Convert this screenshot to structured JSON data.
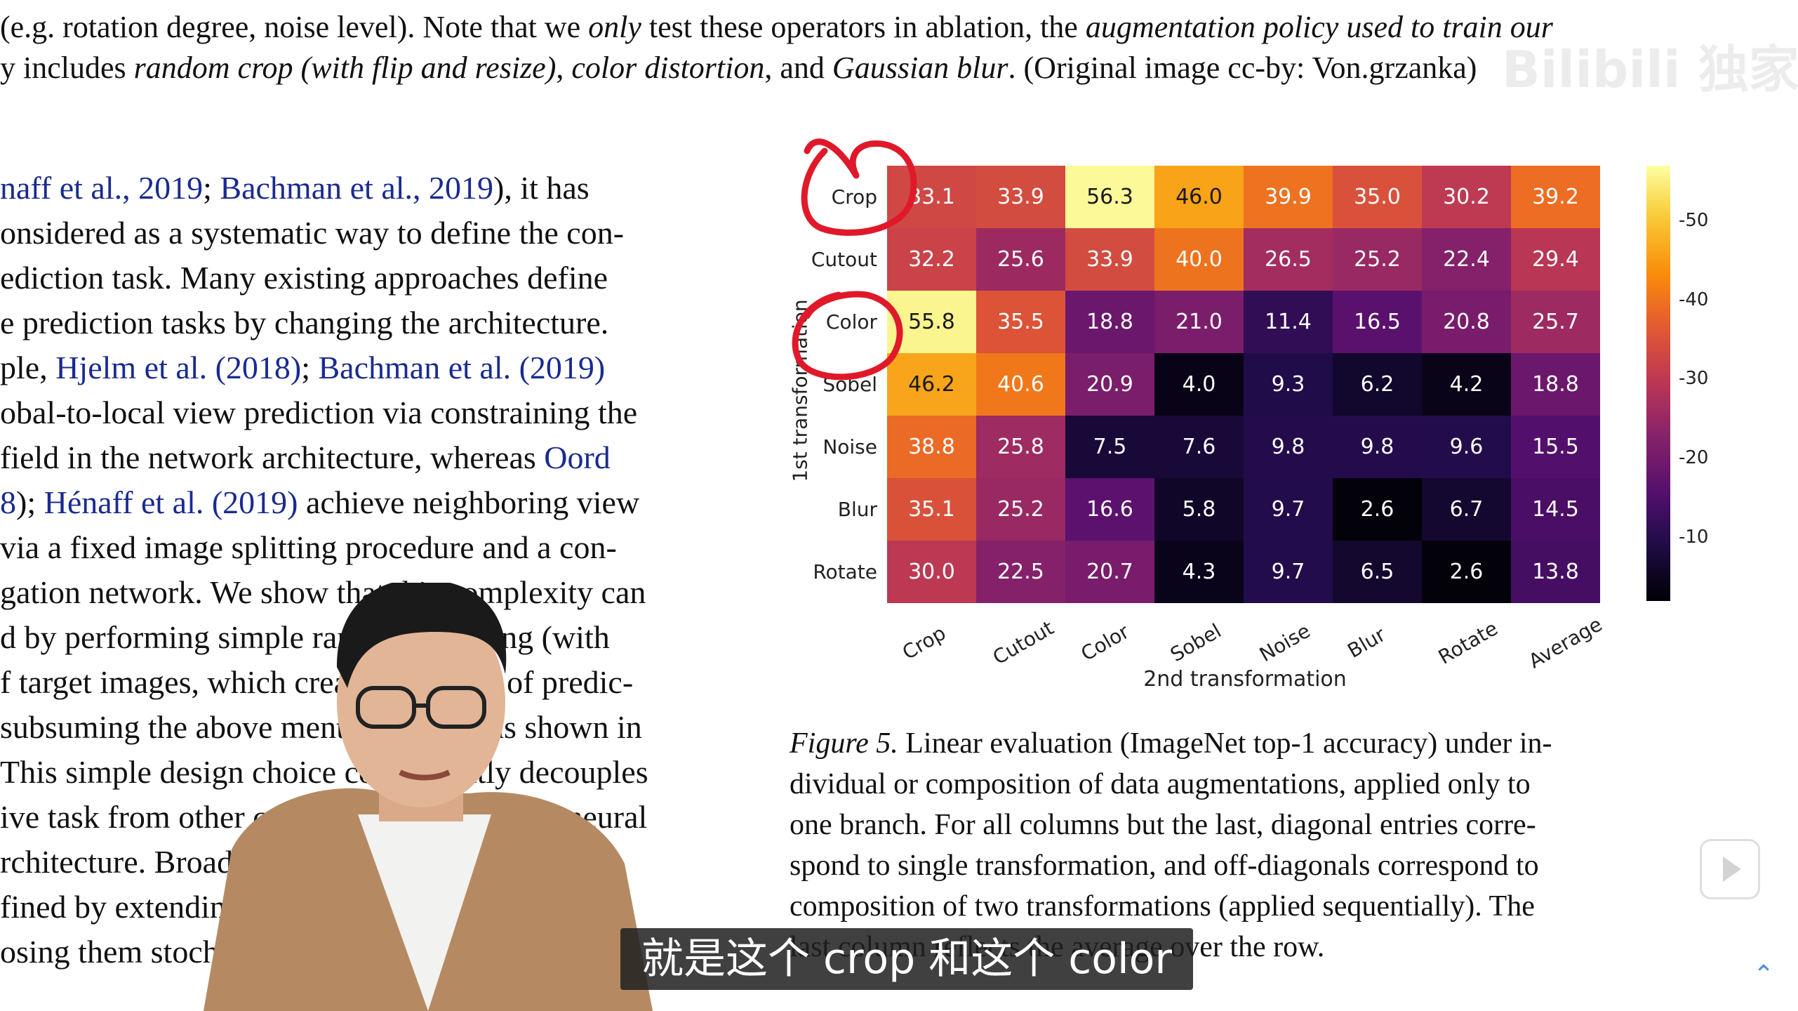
{
  "top_lines": [
    {
      "segments": [
        {
          "t": "(e.g. rotation degree, noise level). Note that we "
        },
        {
          "t": "only",
          "i": true
        },
        {
          "t": " test these operators in ablation, the "
        },
        {
          "t": "augmentation policy used to train our",
          "i": true
        }
      ]
    },
    {
      "segments": [
        {
          "t": "y includes "
        },
        {
          "t": "random crop (with flip and resize)",
          "i": true
        },
        {
          "t": ", "
        },
        {
          "t": "color distortion",
          "i": true
        },
        {
          "t": ", and "
        },
        {
          "t": "Gaussian blur",
          "i": true
        },
        {
          "t": ". (Original image cc-by: Von.grzanka)"
        }
      ]
    }
  ],
  "body_lines": [
    {
      "segments": [
        {
          "t": "naff et al., 2019",
          "l": true
        },
        {
          "t": "; "
        },
        {
          "t": "Bachman et al., 2019",
          "l": true
        },
        {
          "t": "), it has"
        }
      ]
    },
    {
      "segments": [
        {
          "t": "onsidered as a systematic way to define the con-"
        }
      ]
    },
    {
      "segments": [
        {
          "t": "ediction task. Many existing approaches define"
        }
      ]
    },
    {
      "segments": [
        {
          "t": "e prediction tasks by changing the architecture."
        }
      ]
    },
    {
      "segments": [
        {
          "t": "ple, "
        },
        {
          "t": "Hjelm et al. (2018)",
          "l": true
        },
        {
          "t": "; "
        },
        {
          "t": "Bachman et al. (2019)",
          "l": true
        }
      ]
    },
    {
      "segments": [
        {
          "t": "obal-to-local view prediction via constraining the"
        }
      ]
    },
    {
      "segments": [
        {
          "t": "field in the network architecture, whereas "
        },
        {
          "t": "Oord",
          "l": true
        }
      ]
    },
    {
      "segments": [
        {
          "t": "8",
          "l": true
        },
        {
          "t": "); "
        },
        {
          "t": "Hénaff et al. (2019)",
          "l": true
        },
        {
          "t": " achieve neighboring view"
        }
      ]
    },
    {
      "segments": [
        {
          "t": " via a fixed image splitting procedure and a con-"
        }
      ]
    },
    {
      "segments": [
        {
          "t": "gation network. We show that this complexity can"
        }
      ]
    },
    {
      "segments": [
        {
          "t": "d by performing simple random cropping (with"
        }
      ]
    },
    {
      "segments": [
        {
          "t": "f target images, which creates a family of predic-"
        }
      ]
    },
    {
      "segments": [
        {
          "t": "subsuming the above mentioned two, as shown in"
        }
      ]
    },
    {
      "segments": [
        {
          "t": "This simple design choice conveniently decouples"
        }
      ]
    },
    {
      "segments": [
        {
          "t": "ive task from other components such as the neural"
        }
      ]
    },
    {
      "segments": [
        {
          "t": "rchitecture. Broader contrastive prediction tasks"
        }
      ]
    },
    {
      "segments": [
        {
          "t": "fined by extending the family of augmentations"
        }
      ]
    },
    {
      "segments": [
        {
          "t": "osing them stochastically."
        }
      ]
    }
  ],
  "chart_data": {
    "type": "heatmap",
    "ylabel": "1st transformation",
    "xlabel": "2nd transformation",
    "rows": [
      "Crop",
      "Cutout",
      "Color",
      "Sobel",
      "Noise",
      "Blur",
      "Rotate"
    ],
    "columns": [
      "Crop",
      "Cutout",
      "Color",
      "Sobel",
      "Noise",
      "Blur",
      "Rotate",
      "Average"
    ],
    "values": [
      [
        33.1,
        33.9,
        56.3,
        46.0,
        39.9,
        35.0,
        30.2,
        39.2
      ],
      [
        32.2,
        25.6,
        33.9,
        40.0,
        26.5,
        25.2,
        22.4,
        29.4
      ],
      [
        55.8,
        35.5,
        18.8,
        21.0,
        11.4,
        16.5,
        20.8,
        25.7
      ],
      [
        46.2,
        40.6,
        20.9,
        4.0,
        9.3,
        6.2,
        4.2,
        18.8
      ],
      [
        38.8,
        25.8,
        7.5,
        7.6,
        9.8,
        9.8,
        9.6,
        15.5
      ],
      [
        35.1,
        25.2,
        16.6,
        5.8,
        9.7,
        2.6,
        6.7,
        14.5
      ],
      [
        30.0,
        22.5,
        20.7,
        4.3,
        9.7,
        6.5,
        2.6,
        13.8
      ]
    ],
    "colorbar_ticks": [
      10,
      20,
      30,
      40,
      50
    ],
    "color_range": [
      2,
      57
    ],
    "colormap": "inferno"
  },
  "caption_lines": [
    {
      "segments": [
        {
          "t": "Figure 5.",
          "i": true
        },
        {
          "t": " Linear evaluation (ImageNet top-1 accuracy) under in-"
        }
      ]
    },
    {
      "segments": [
        {
          "t": "dividual or composition of data augmentations, applied only to"
        }
      ]
    },
    {
      "segments": [
        {
          "t": "one branch.  For all columns but the last, diagonal entries corre-"
        }
      ]
    },
    {
      "segments": [
        {
          "t": "spond to single transformation, and off-diagonals correspond to"
        }
      ]
    },
    {
      "segments": [
        {
          "t": "composition of two transformations (applied sequentially).  The"
        }
      ]
    },
    {
      "segments": [
        {
          "t": "last column reflects the average over the row."
        }
      ]
    }
  ],
  "subtitle": "就是这个 crop 和这个 color",
  "watermark": "Bilibili 独家",
  "colors": {
    "link": "#1a2b8f",
    "annotation": "#e0192a",
    "subtitle_bg": "#1e1e1e"
  }
}
